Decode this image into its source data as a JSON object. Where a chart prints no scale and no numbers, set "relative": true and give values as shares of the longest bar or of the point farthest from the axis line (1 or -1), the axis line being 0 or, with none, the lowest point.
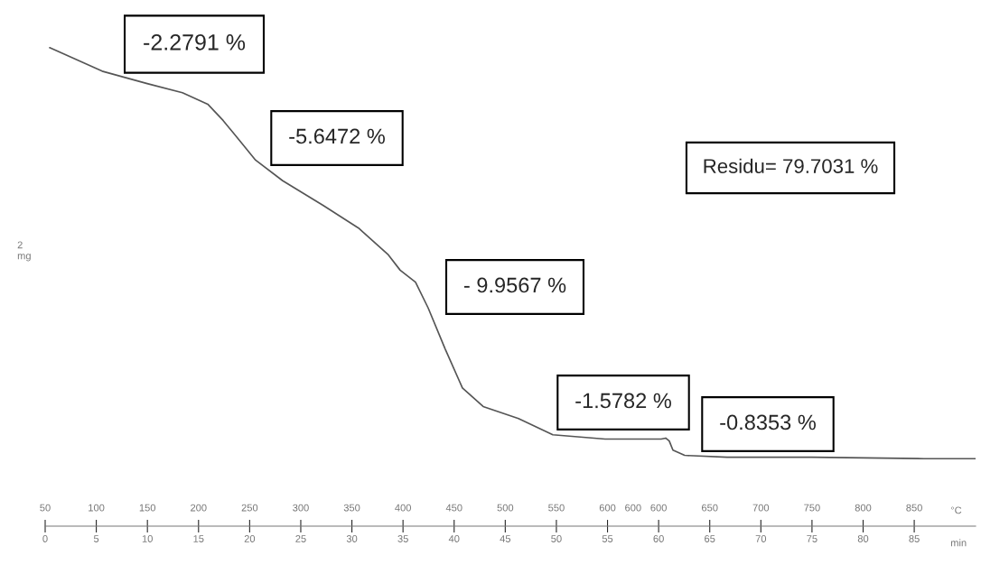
{
  "chart_data": {
    "type": "line",
    "relative": true,
    "ylabel": "2 mg",
    "xlabel": "min",
    "x2label": "°C",
    "xlim": [
      0,
      91
    ],
    "xticks": [
      0,
      5,
      10,
      15,
      20,
      25,
      30,
      35,
      40,
      45,
      50,
      55,
      60,
      65,
      70,
      75,
      80,
      85
    ],
    "grid": false,
    "legend": false,
    "marker": "none",
    "line_style": "solid",
    "series": [
      {
        "color": "#555555",
        "x": [
          0.44,
          5.57,
          9.98,
          13.43,
          15.9,
          17.4,
          18.82,
          20.58,
          23.23,
          27.21,
          30.65,
          33.57,
          34.72,
          36.22,
          37.46,
          39.13,
          40.81,
          42.84,
          46.29,
          49.65,
          54.77,
          58.83,
          60.25,
          60.69,
          61.04,
          61.4,
          62.54,
          66.7,
          75.0,
          85.95,
          91.0
        ],
        "values": [
          1.0,
          0.951,
          0.925,
          0.906,
          0.882,
          0.848,
          0.811,
          0.765,
          0.722,
          0.67,
          0.623,
          0.567,
          0.535,
          0.51,
          0.456,
          0.37,
          0.289,
          0.25,
          0.225,
          0.191,
          0.182,
          0.182,
          0.182,
          0.184,
          0.178,
          0.159,
          0.148,
          0.144,
          0.144,
          0.141,
          0.141
        ]
      }
    ],
    "annotations": [
      "-2.2791 %",
      "-5.6472 %",
      "- 9.9567 %",
      "-1.5782 %",
      "-0.8353 %",
      "Residu= 79.7031 %",
      "50",
      "100",
      "150",
      "200",
      "250",
      "300",
      "350",
      "400",
      "450",
      "500",
      "550",
      "600",
      "600",
      "600",
      "650",
      "700",
      "750",
      "800",
      "850"
    ]
  }
}
